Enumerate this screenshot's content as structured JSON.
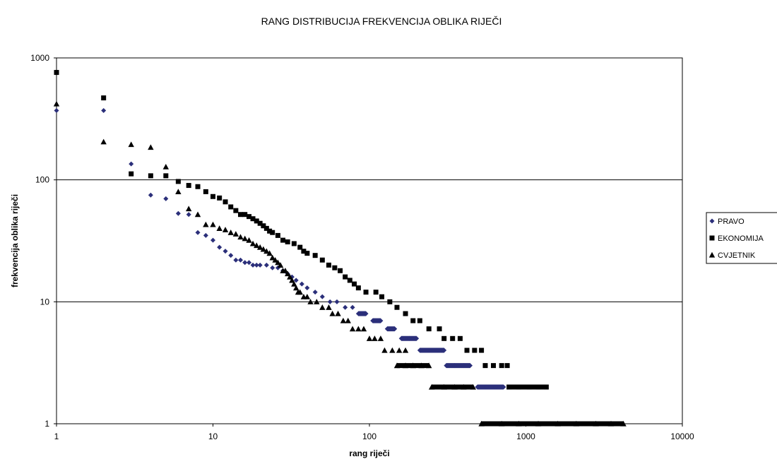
{
  "chart_data": {
    "type": "scatter",
    "title": "RANG DISTRIBUCIJA FREKVENCIJA OBLIKA RIJEČI",
    "xlabel": "rang riječi",
    "ylabel": "frekvencija oblika riječi",
    "x_scale": "log",
    "y_scale": "log",
    "xlim": [
      1,
      10000
    ],
    "ylim": [
      1,
      1000
    ],
    "x_ticks": [
      "1",
      "10",
      "100",
      "1000",
      "10000"
    ],
    "y_ticks": [
      "1",
      "10",
      "100",
      "1000"
    ],
    "grid": "horizontal major lines",
    "legend_position": "right",
    "series": [
      {
        "name": "PRAVO",
        "marker": "diamond",
        "color": "#2b2f7a",
        "points": [
          [
            1,
            370
          ],
          [
            2,
            370
          ],
          [
            3,
            135
          ],
          [
            4,
            75
          ],
          [
            5,
            70
          ],
          [
            6,
            53
          ],
          [
            7,
            52
          ],
          [
            8,
            37
          ],
          [
            9,
            35
          ],
          [
            10,
            32
          ],
          [
            11,
            28
          ],
          [
            12,
            26
          ],
          [
            13,
            24
          ],
          [
            14,
            22
          ],
          [
            15,
            22
          ],
          [
            16,
            21
          ],
          [
            17,
            21
          ],
          [
            18,
            20
          ],
          [
            19,
            20
          ],
          [
            20,
            20
          ],
          [
            22,
            20
          ],
          [
            24,
            19
          ],
          [
            26,
            19
          ],
          [
            28,
            18
          ],
          [
            30,
            17
          ],
          [
            32,
            16
          ],
          [
            34,
            15
          ],
          [
            37,
            14
          ],
          [
            40,
            13
          ],
          [
            45,
            12
          ],
          [
            50,
            11
          ],
          [
            56,
            10
          ],
          [
            62,
            10
          ],
          [
            70,
            9
          ],
          [
            78,
            9
          ],
          [
            85,
            8
          ],
          [
            95,
            8
          ],
          [
            105,
            7
          ],
          [
            118,
            7
          ],
          [
            130,
            6
          ],
          [
            145,
            6
          ],
          [
            160,
            5
          ],
          [
            180,
            5
          ],
          [
            200,
            5
          ],
          [
            210,
            4
          ],
          [
            240,
            4
          ],
          [
            270,
            4
          ],
          [
            300,
            4
          ],
          [
            310,
            3
          ],
          [
            350,
            3
          ],
          [
            400,
            3
          ],
          [
            440,
            3
          ],
          [
            490,
            2
          ],
          [
            560,
            2
          ],
          [
            640,
            2
          ],
          [
            720,
            2
          ]
        ]
      },
      {
        "name": "EKONOMIJA",
        "marker": "square",
        "color": "#000000",
        "points": [
          [
            1,
            760
          ],
          [
            2,
            470
          ],
          [
            3,
            112
          ],
          [
            4,
            108
          ],
          [
            5,
            108
          ],
          [
            6,
            97
          ],
          [
            7,
            90
          ],
          [
            8,
            88
          ],
          [
            9,
            80
          ],
          [
            10,
            73
          ],
          [
            11,
            71
          ],
          [
            12,
            66
          ],
          [
            13,
            60
          ],
          [
            14,
            56
          ],
          [
            15,
            52
          ],
          [
            16,
            52
          ],
          [
            17,
            50
          ],
          [
            18,
            48
          ],
          [
            19,
            46
          ],
          [
            20,
            44
          ],
          [
            21,
            42
          ],
          [
            22,
            40
          ],
          [
            23,
            38
          ],
          [
            24,
            37
          ],
          [
            26,
            35
          ],
          [
            28,
            32
          ],
          [
            30,
            31
          ],
          [
            33,
            30
          ],
          [
            36,
            28
          ],
          [
            38,
            26
          ],
          [
            40,
            25
          ],
          [
            45,
            24
          ],
          [
            50,
            22
          ],
          [
            55,
            20
          ],
          [
            60,
            19
          ],
          [
            65,
            18
          ],
          [
            70,
            16
          ],
          [
            75,
            15
          ],
          [
            80,
            14
          ],
          [
            85,
            13
          ],
          [
            95,
            12
          ],
          [
            110,
            12
          ],
          [
            120,
            11
          ],
          [
            135,
            10
          ],
          [
            150,
            9
          ],
          [
            170,
            8
          ],
          [
            190,
            7
          ],
          [
            210,
            7
          ],
          [
            240,
            6
          ],
          [
            280,
            6
          ],
          [
            300,
            5
          ],
          [
            340,
            5
          ],
          [
            380,
            5
          ],
          [
            420,
            4
          ],
          [
            470,
            4
          ],
          [
            520,
            4
          ],
          [
            550,
            3
          ],
          [
            620,
            3
          ],
          [
            700,
            3
          ],
          [
            760,
            3
          ],
          [
            780,
            2
          ],
          [
            900,
            2
          ],
          [
            1050,
            2
          ],
          [
            1200,
            2
          ],
          [
            1350,
            2
          ]
        ]
      },
      {
        "name": "CVJETNIK",
        "marker": "triangle",
        "color": "#000000",
        "points": [
          [
            1,
            420
          ],
          [
            2,
            205
          ],
          [
            3,
            195
          ],
          [
            4,
            185
          ],
          [
            5,
            128
          ],
          [
            6,
            80
          ],
          [
            7,
            58
          ],
          [
            8,
            52
          ],
          [
            9,
            43
          ],
          [
            10,
            43
          ],
          [
            11,
            40
          ],
          [
            12,
            39
          ],
          [
            13,
            37
          ],
          [
            14,
            36
          ],
          [
            15,
            34
          ],
          [
            16,
            33
          ],
          [
            17,
            32
          ],
          [
            18,
            30
          ],
          [
            19,
            29
          ],
          [
            20,
            28
          ],
          [
            21,
            27
          ],
          [
            22,
            26
          ],
          [
            23,
            25
          ],
          [
            24,
            23
          ],
          [
            25,
            22
          ],
          [
            26,
            21
          ],
          [
            27,
            20
          ],
          [
            28,
            18
          ],
          [
            29,
            18
          ],
          [
            30,
            17
          ],
          [
            31,
            16
          ],
          [
            32,
            15
          ],
          [
            33,
            14
          ],
          [
            34,
            13
          ],
          [
            35,
            12
          ],
          [
            36,
            12
          ],
          [
            38,
            11
          ],
          [
            40,
            11
          ],
          [
            42,
            10
          ],
          [
            46,
            10
          ],
          [
            50,
            9
          ],
          [
            55,
            9
          ],
          [
            58,
            8
          ],
          [
            63,
            8
          ],
          [
            68,
            7
          ],
          [
            73,
            7
          ],
          [
            78,
            6
          ],
          [
            85,
            6
          ],
          [
            92,
            6
          ],
          [
            100,
            5
          ],
          [
            108,
            5
          ],
          [
            118,
            5
          ],
          [
            125,
            4
          ],
          [
            140,
            4
          ],
          [
            155,
            4
          ],
          [
            170,
            4
          ],
          [
            150,
            3
          ],
          [
            170,
            3
          ],
          [
            190,
            3
          ],
          [
            215,
            3
          ],
          [
            240,
            3
          ],
          [
            250,
            2
          ],
          [
            300,
            2
          ],
          [
            350,
            2
          ],
          [
            400,
            2
          ],
          [
            460,
            2
          ],
          [
            520,
            1
          ],
          [
            700,
            1
          ],
          [
            900,
            1
          ],
          [
            1200,
            1
          ],
          [
            1600,
            1
          ],
          [
            2100,
            1
          ],
          [
            2800,
            1
          ],
          [
            3500,
            1
          ],
          [
            4200,
            1
          ]
        ]
      }
    ],
    "horizontal_runs": [
      {
        "series": "PRAVO",
        "y": 8,
        "x_from": 85,
        "x_to": 95
      },
      {
        "series": "PRAVO",
        "y": 7,
        "x_from": 105,
        "x_to": 118
      },
      {
        "series": "PRAVO",
        "y": 6,
        "x_from": 130,
        "x_to": 145
      },
      {
        "series": "PRAVO",
        "y": 5,
        "x_from": 160,
        "x_to": 200
      },
      {
        "series": "PRAVO",
        "y": 4,
        "x_from": 210,
        "x_to": 300
      },
      {
        "series": "PRAVO",
        "y": 3,
        "x_from": 310,
        "x_to": 440
      },
      {
        "series": "PRAVO",
        "y": 2,
        "x_from": 490,
        "x_to": 720
      },
      {
        "series": "EKONOMIJA",
        "y": 2,
        "x_from": 780,
        "x_to": 1350
      },
      {
        "series": "CVJETNIK",
        "y": 3,
        "x_from": 150,
        "x_to": 240
      },
      {
        "series": "CVJETNIK",
        "y": 2,
        "x_from": 250,
        "x_to": 460
      },
      {
        "series": "CVJETNIK",
        "y": 1,
        "x_from": 520,
        "x_to": 4200
      }
    ]
  }
}
